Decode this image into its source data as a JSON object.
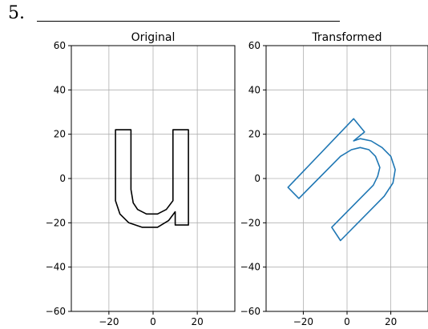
{
  "problem": {
    "number": "5."
  },
  "chart_data": [
    {
      "type": "line",
      "title": "Original",
      "xlim": [
        -37,
        37
      ],
      "ylim": [
        -60,
        60
      ],
      "xticks": [
        -20,
        0,
        20
      ],
      "yticks": [
        -60,
        -40,
        -20,
        0,
        20,
        40,
        60
      ],
      "grid": true,
      "series": [
        {
          "color": "#000000",
          "points": [
            [
              -17,
              22
            ],
            [
              -10,
              22
            ],
            [
              -10,
              -5
            ],
            [
              -9,
              -11
            ],
            [
              -7,
              -14
            ],
            [
              -3,
              -16
            ],
            [
              2,
              -16
            ],
            [
              6,
              -14
            ],
            [
              9,
              -10
            ],
            [
              9,
              22
            ],
            [
              16,
              22
            ],
            [
              16,
              -21
            ],
            [
              10,
              -21
            ],
            [
              10,
              -15
            ],
            [
              7,
              -19
            ],
            [
              2,
              -22
            ],
            [
              -5,
              -22
            ],
            [
              -11,
              -20
            ],
            [
              -15,
              -16
            ],
            [
              -17,
              -10
            ],
            [
              -17,
              -4
            ],
            [
              -17,
              22
            ]
          ]
        }
      ]
    },
    {
      "type": "line",
      "title": "Transformed",
      "xlim": [
        -37,
        37
      ],
      "ylim": [
        -60,
        60
      ],
      "xticks": [
        -20,
        0,
        20
      ],
      "yticks": [
        -60,
        -40,
        -20,
        0,
        20,
        40,
        60
      ],
      "grid": true,
      "series": [
        {
          "color": "#1f77b4",
          "points": [
            [
              -27,
              -4
            ],
            [
              -22,
              -9
            ],
            [
              -3,
              10
            ],
            [
              2,
              13
            ],
            [
              6,
              14
            ],
            [
              10,
              13
            ],
            [
              13,
              10
            ],
            [
              15,
              5
            ],
            [
              14,
              1
            ],
            [
              12,
              -3
            ],
            [
              -7,
              -22
            ],
            [
              -3,
              -28
            ],
            [
              17,
              -8
            ],
            [
              21,
              -2
            ],
            [
              22,
              4
            ],
            [
              20,
              10
            ],
            [
              16,
              14
            ],
            [
              11,
              17
            ],
            [
              6,
              18
            ],
            [
              3,
              17
            ],
            [
              8,
              21
            ],
            [
              3,
              27
            ],
            [
              -27,
              -4
            ]
          ]
        }
      ]
    }
  ]
}
